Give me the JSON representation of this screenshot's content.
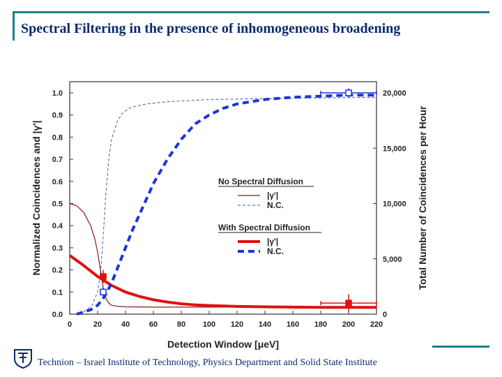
{
  "slide": {
    "title": "Spectral Filtering in the presence of inhomogeneous broadening",
    "footer": "Technion – Israel Institute of Technology, Physics Department and Solid State Institute",
    "accent_color": "#1b7f8c",
    "title_color": "#0b2a6e",
    "logo_icon": "technion-logo-icon"
  },
  "chart_data": {
    "type": "line",
    "title": "",
    "xlabel": "Detection Window [μeV]",
    "ylabel": "Normalized Coincidences and |γ'|",
    "y2label": "Total Number of Coincidences per Hour",
    "xlim": [
      0,
      220
    ],
    "ylim": [
      0,
      1.05
    ],
    "y2lim": [
      0,
      20600
    ],
    "xticks": [
      0,
      20,
      40,
      60,
      80,
      100,
      120,
      140,
      160,
      180,
      200,
      220
    ],
    "yticks": [
      0.0,
      0.1,
      0.2,
      0.3,
      0.4,
      0.5,
      0.6,
      0.7,
      0.8,
      0.9,
      1.0
    ],
    "y2ticks": [
      0,
      5000,
      10000,
      15000,
      20000
    ],
    "y2ticklabels": [
      "0",
      "5,000",
      "10,000",
      "15,000",
      "20,000"
    ],
    "legend_groups": [
      {
        "heading": "No Spectral Diffusion",
        "entries": [
          {
            "label": "|γ'|",
            "series": "nsd_gamma"
          },
          {
            "label": "N.C.",
            "series": "nsd_nc"
          }
        ]
      },
      {
        "heading": "With Spectral Diffusion",
        "entries": [
          {
            "label": "|γ'|",
            "series": "wsd_gamma"
          },
          {
            "label": "N.C.",
            "series": "wsd_nc"
          }
        ]
      }
    ],
    "series": [
      {
        "id": "nsd_gamma",
        "name": "No Spectral Diffusion |γ'|",
        "color": "#8b1a1a",
        "width": 1.2,
        "dash": "",
        "x": [
          0,
          5,
          10,
          15,
          18,
          20,
          22,
          24,
          26,
          28,
          30,
          35,
          40,
          60,
          220
        ],
        "y": [
          0.5,
          0.49,
          0.46,
          0.4,
          0.34,
          0.28,
          0.2,
          0.12,
          0.07,
          0.05,
          0.04,
          0.035,
          0.033,
          0.032,
          0.032
        ]
      },
      {
        "id": "nsd_nc",
        "name": "No Spectral Diffusion N.C.",
        "color": "#4a55aa",
        "width": 1.0,
        "dash": "4,3",
        "x": [
          10,
          16,
          20,
          22,
          24,
          26,
          28,
          30,
          34,
          38,
          44,
          55,
          70,
          100,
          150,
          220
        ],
        "y": [
          0.01,
          0.04,
          0.1,
          0.18,
          0.35,
          0.55,
          0.7,
          0.79,
          0.87,
          0.91,
          0.935,
          0.95,
          0.96,
          0.97,
          0.975,
          0.98
        ]
      },
      {
        "id": "wsd_gamma",
        "name": "With Spectral Diffusion |γ'|",
        "color": "#e01010",
        "width": 4.0,
        "dash": "",
        "x": [
          0,
          10,
          20,
          30,
          40,
          50,
          60,
          70,
          80,
          90,
          100,
          120,
          140,
          160,
          180,
          220
        ],
        "y": [
          0.265,
          0.22,
          0.17,
          0.13,
          0.1,
          0.08,
          0.065,
          0.055,
          0.047,
          0.042,
          0.039,
          0.035,
          0.033,
          0.032,
          0.031,
          0.031
        ]
      },
      {
        "id": "wsd_nc",
        "name": "With Spectral Diffusion N.C.",
        "color": "#1a35d8",
        "width": 4.0,
        "dash": "9,6",
        "x": [
          5,
          15,
          20,
          25,
          30,
          35,
          40,
          45,
          50,
          55,
          60,
          70,
          80,
          90,
          100,
          110,
          120,
          140,
          160,
          180,
          200,
          220
        ],
        "y": [
          0.0,
          0.02,
          0.04,
          0.08,
          0.14,
          0.22,
          0.3,
          0.38,
          0.45,
          0.52,
          0.59,
          0.7,
          0.79,
          0.86,
          0.9,
          0.93,
          0.95,
          0.97,
          0.98,
          0.985,
          0.99,
          0.99
        ]
      }
    ],
    "markers": [
      {
        "name": "nsd-gamma-point",
        "x": 24,
        "y": 0.17,
        "xerr": 2,
        "yerr": 0.03,
        "color": "#e01010",
        "filled": true
      },
      {
        "name": "wsd-gamma-point",
        "x": 200,
        "y": 0.05,
        "xerr": 20,
        "yerr": 0.04,
        "color": "#e01010",
        "filled": true
      },
      {
        "name": "nsd-nc-point",
        "x": 24,
        "y": 0.1,
        "xerr": 2,
        "yerr": 0.02,
        "color": "#1a35d8",
        "filled": false
      },
      {
        "name": "wsd-nc-point",
        "x": 200,
        "y": 1.0,
        "xerr": 20,
        "yerr": 0.02,
        "color": "#1a35d8",
        "filled": false
      }
    ]
  }
}
